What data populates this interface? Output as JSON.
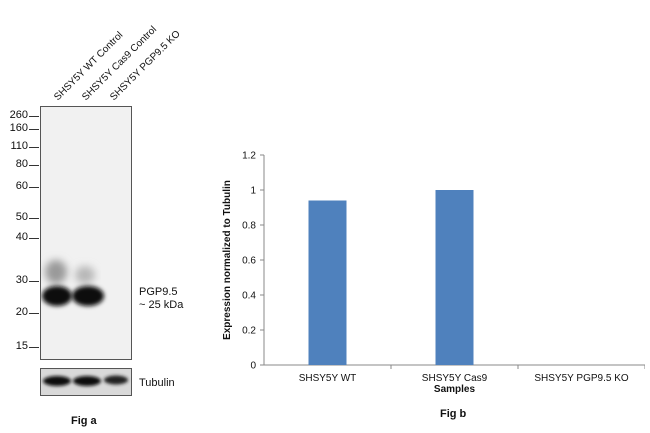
{
  "fig_a": {
    "lanes": [
      "SHSY5Y WT Control",
      "SHSY5Y Cas9 Control",
      "SHSY5Y PGP9.5 KO"
    ],
    "markers": [
      "260",
      "160",
      "110",
      "80",
      "60",
      "50",
      "40",
      "30",
      "20",
      "15"
    ],
    "band_label_line1": "PGP9.5",
    "band_label_line2": "~ 25 kDa",
    "loading_control_label": "Tubulin",
    "caption": "Fig a"
  },
  "chart_data": {
    "type": "bar",
    "categories": [
      "SHSY5Y WT",
      "SHSY5Y  Cas9",
      "SHSY5Y PGP9.5 KO"
    ],
    "values": [
      0.94,
      1.0,
      0.0
    ],
    "title": "",
    "xlabel": "Samples",
    "ylabel": "Expression  normalized to Tubulin",
    "ylim": [
      0,
      1.2
    ],
    "yticks": [
      "0",
      "0.2",
      "0.4",
      "0.6",
      "0.8",
      "1",
      "1.2"
    ],
    "bar_color": "#4f81bd",
    "caption": "Fig b"
  }
}
